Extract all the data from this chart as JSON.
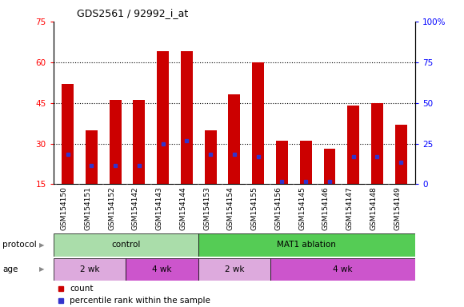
{
  "title": "GDS2561 / 92992_i_at",
  "samples": [
    "GSM154150",
    "GSM154151",
    "GSM154152",
    "GSM154142",
    "GSM154143",
    "GSM154144",
    "GSM154153",
    "GSM154154",
    "GSM154155",
    "GSM154156",
    "GSM154145",
    "GSM154146",
    "GSM154147",
    "GSM154148",
    "GSM154149"
  ],
  "bar_heights": [
    52,
    35,
    46,
    46,
    64,
    64,
    35,
    48,
    60,
    31,
    31,
    28,
    44,
    45,
    37
  ],
  "blue_markers": [
    26,
    22,
    22,
    22,
    30,
    31,
    26,
    26,
    25,
    16,
    16,
    16,
    25,
    25,
    23
  ],
  "bar_color": "#cc0000",
  "blue_color": "#3333cc",
  "ylim_left": [
    15,
    75
  ],
  "ylim_right": [
    0,
    100
  ],
  "yticks_left": [
    15,
    30,
    45,
    60,
    75
  ],
  "yticks_right": [
    0,
    25,
    50,
    75,
    100
  ],
  "ytick_labels_right": [
    "0",
    "25",
    "50",
    "75",
    "100%"
  ],
  "grid_values": [
    30,
    45,
    60
  ],
  "protocol_groups": [
    {
      "label": "control",
      "start": 0,
      "end": 6,
      "color": "#aaddaa"
    },
    {
      "label": "MAT1 ablation",
      "start": 6,
      "end": 15,
      "color": "#55cc55"
    }
  ],
  "age_groups": [
    {
      "label": "2 wk",
      "start": 0,
      "end": 3,
      "color": "#ddaadd"
    },
    {
      "label": "4 wk",
      "start": 3,
      "end": 6,
      "color": "#cc55cc"
    },
    {
      "label": "2 wk",
      "start": 6,
      "end": 9,
      "color": "#ddaadd"
    },
    {
      "label": "4 wk",
      "start": 9,
      "end": 15,
      "color": "#cc55cc"
    }
  ],
  "protocol_label": "protocol",
  "age_label": "age",
  "legend_count_label": "count",
  "legend_percentile_label": "percentile rank within the sample",
  "bar_width": 0.5,
  "xtick_bg_color": "#cccccc"
}
